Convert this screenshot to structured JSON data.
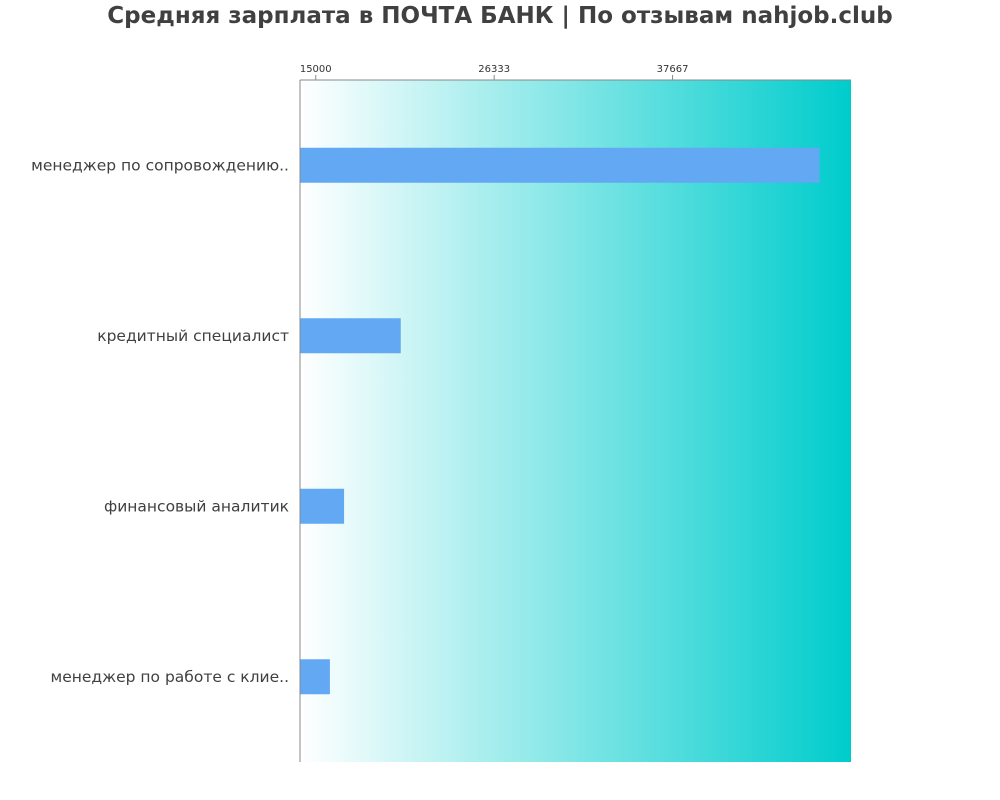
{
  "chart_data": {
    "type": "bar",
    "orientation": "horizontal",
    "title": "Средняя зарплата в ПОЧТА БАНК | По отзывам nahjob.club",
    "xlabel": "",
    "ylabel": "",
    "categories": [
      "менеджер по сопровождению..",
      "кредитный специалист",
      "финансовый аналитик",
      "менеджер по работе с клие.."
    ],
    "values": [
      47000,
      20400,
      16800,
      15900
    ],
    "x_ticks": [
      15000,
      26333,
      37667
    ],
    "x_tick_labels": [
      "15000",
      "26333",
      "37667"
    ],
    "xlim": [
      14000,
      49000
    ],
    "grid": false,
    "legend": "none"
  },
  "colors": {
    "bar": "#62a8f3",
    "background_gradient_start": "#ffffff",
    "background_gradient_end": "#00cccc",
    "axis": "#888888",
    "text": "#404040"
  }
}
